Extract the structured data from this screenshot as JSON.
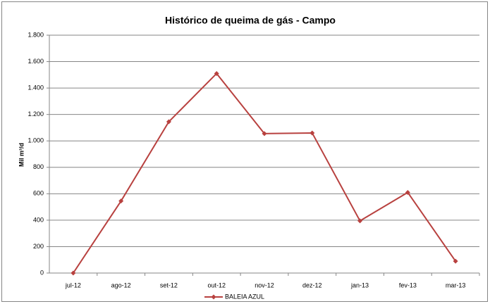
{
  "chart_data": {
    "type": "line",
    "title": "Histórico de queima de gás - Campo",
    "y_label": "Mil m³/d",
    "categories": [
      "jul-12",
      "ago-12",
      "set-12",
      "out-12",
      "nov-12",
      "dez-12",
      "jan-13",
      "fev-13",
      "mar-13"
    ],
    "series": [
      {
        "name": "BALEIA AZUL",
        "color": "#b8413f",
        "values": [
          0,
          545,
          1145,
          1510,
          1055,
          1060,
          395,
          610,
          90
        ]
      }
    ],
    "ylim": [
      0,
      1800
    ],
    "yticks": [
      0,
      200,
      400,
      600,
      800,
      {
        "value": 1000,
        "label": "1.000"
      },
      {
        "value": 1200,
        "label": "1.200"
      },
      {
        "value": 1400,
        "label": "1.400"
      },
      {
        "value": 1600,
        "label": "1.600"
      },
      {
        "value": 1800,
        "label": "1.800"
      }
    ],
    "grid": true,
    "legend": "bottom"
  }
}
